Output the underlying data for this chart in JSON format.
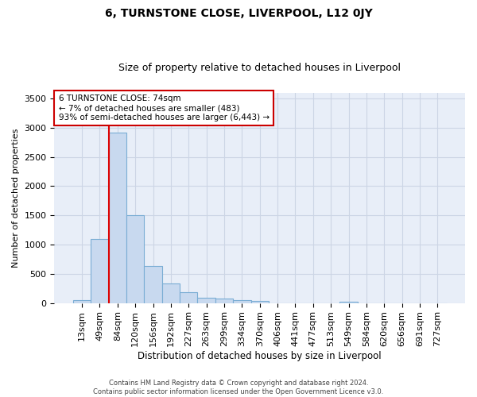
{
  "title": "6, TURNSTONE CLOSE, LIVERPOOL, L12 0JY",
  "subtitle": "Size of property relative to detached houses in Liverpool",
  "xlabel": "Distribution of detached houses by size in Liverpool",
  "ylabel": "Number of detached properties",
  "footer_line1": "Contains HM Land Registry data © Crown copyright and database right 2024.",
  "footer_line2": "Contains public sector information licensed under the Open Government Licence v3.0.",
  "bar_labels": [
    "13sqm",
    "49sqm",
    "84sqm",
    "120sqm",
    "156sqm",
    "192sqm",
    "227sqm",
    "263sqm",
    "299sqm",
    "334sqm",
    "370sqm",
    "406sqm",
    "441sqm",
    "477sqm",
    "513sqm",
    "549sqm",
    "584sqm",
    "620sqm",
    "656sqm",
    "691sqm",
    "727sqm"
  ],
  "bar_values": [
    50,
    1100,
    2920,
    1510,
    640,
    340,
    185,
    90,
    80,
    55,
    35,
    0,
    0,
    0,
    0,
    25,
    0,
    0,
    0,
    0,
    0
  ],
  "bar_color": "#c8d9ef",
  "bar_edge_color": "#7aadd4",
  "red_line_x": 1.5,
  "red_line_color": "#dd0000",
  "ylim": [
    0,
    3600
  ],
  "yticks": [
    0,
    500,
    1000,
    1500,
    2000,
    2500,
    3000,
    3500
  ],
  "annotation_text": "6 TURNSTONE CLOSE: 74sqm\n← 7% of detached houses are smaller (483)\n93% of semi-detached houses are larger (6,443) →",
  "annotation_box_color": "#ffffff",
  "annotation_box_edge_color": "#cc0000",
  "grid_color": "#ccd5e5",
  "bg_color": "#e8eef8",
  "title_fontsize": 10,
  "subtitle_fontsize": 9,
  "ylabel_fontsize": 8,
  "xlabel_fontsize": 8.5,
  "tick_fontsize": 8,
  "annot_fontsize": 7.5,
  "footer_fontsize": 6
}
